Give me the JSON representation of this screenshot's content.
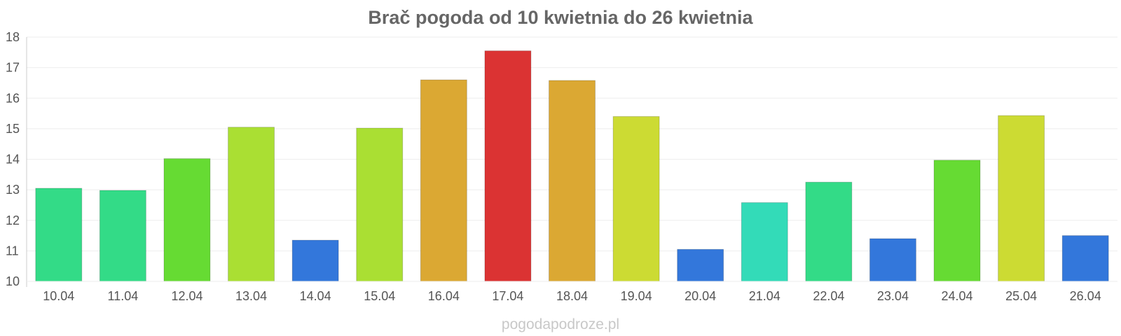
{
  "chart_data": {
    "type": "bar",
    "title": "Brač pogoda od 10 kwietnia do 26 kwietnia",
    "xlabel": "",
    "ylabel": "",
    "ylim": [
      10,
      18
    ],
    "yticks": [
      10,
      11,
      12,
      13,
      14,
      15,
      16,
      17,
      18
    ],
    "grid": true,
    "legend": "none",
    "categories": [
      "10.04",
      "11.04",
      "12.04",
      "13.04",
      "14.04",
      "15.04",
      "16.04",
      "17.04",
      "18.04",
      "19.04",
      "20.04",
      "21.04",
      "22.04",
      "23.04",
      "24.04",
      "25.04",
      "26.04"
    ],
    "values": [
      13.05,
      12.98,
      14.02,
      15.05,
      11.35,
      15.02,
      16.6,
      17.55,
      16.58,
      15.4,
      11.05,
      12.58,
      13.25,
      11.4,
      13.97,
      15.43,
      11.5
    ],
    "colors": [
      "#33db87",
      "#33db87",
      "#66db33",
      "#aadf33",
      "#3377db",
      "#aadf33",
      "#dba833",
      "#db3333",
      "#dba833",
      "#ccdb33",
      "#3377db",
      "#33dbb8",
      "#33db87",
      "#3377db",
      "#66db33",
      "#ccdb33",
      "#3377db"
    ]
  },
  "watermark": "pogodapodroze.pl",
  "colors": {
    "title": "#666666",
    "gridline": "#eeeeee",
    "axis": "#cccccc",
    "tick_text": "#555555",
    "watermark": "#c8c8c8"
  }
}
